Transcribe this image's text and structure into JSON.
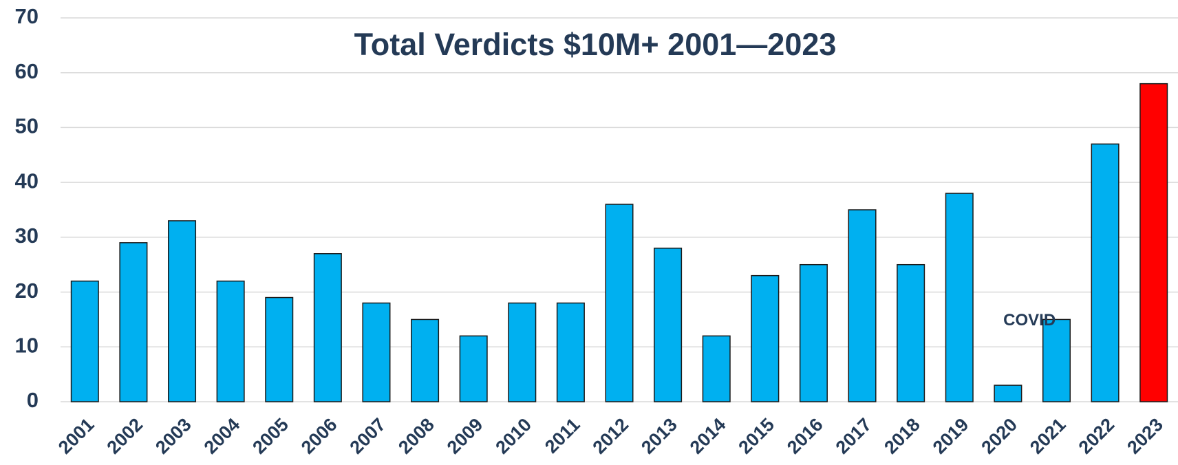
{
  "chart_data": {
    "type": "bar",
    "title": "Total Verdicts $10M+  2001—2023",
    "categories": [
      "2001",
      "2002",
      "2003",
      "2004",
      "2005",
      "2006",
      "2007",
      "2008",
      "2009",
      "2010",
      "2011",
      "2012",
      "2013",
      "2014",
      "2015",
      "2016",
      "2017",
      "2018",
      "2019",
      "2020",
      "2021",
      "2022",
      "2023"
    ],
    "values": [
      22,
      29,
      33,
      22,
      19,
      27,
      18,
      15,
      12,
      18,
      18,
      36,
      28,
      12,
      23,
      25,
      35,
      25,
      38,
      3,
      15,
      47,
      58
    ],
    "colors": [
      "#00b0f0",
      "#00b0f0",
      "#00b0f0",
      "#00b0f0",
      "#00b0f0",
      "#00b0f0",
      "#00b0f0",
      "#00b0f0",
      "#00b0f0",
      "#00b0f0",
      "#00b0f0",
      "#00b0f0",
      "#00b0f0",
      "#00b0f0",
      "#00b0f0",
      "#00b0f0",
      "#00b0f0",
      "#00b0f0",
      "#00b0f0",
      "#00b0f0",
      "#00b0f0",
      "#00b0f0",
      "#ff0000"
    ],
    "annotation": "COVID",
    "ylim": [
      0,
      70
    ],
    "yticks": [
      0,
      10,
      20,
      30,
      40,
      50,
      60,
      70
    ],
    "grid": true
  }
}
